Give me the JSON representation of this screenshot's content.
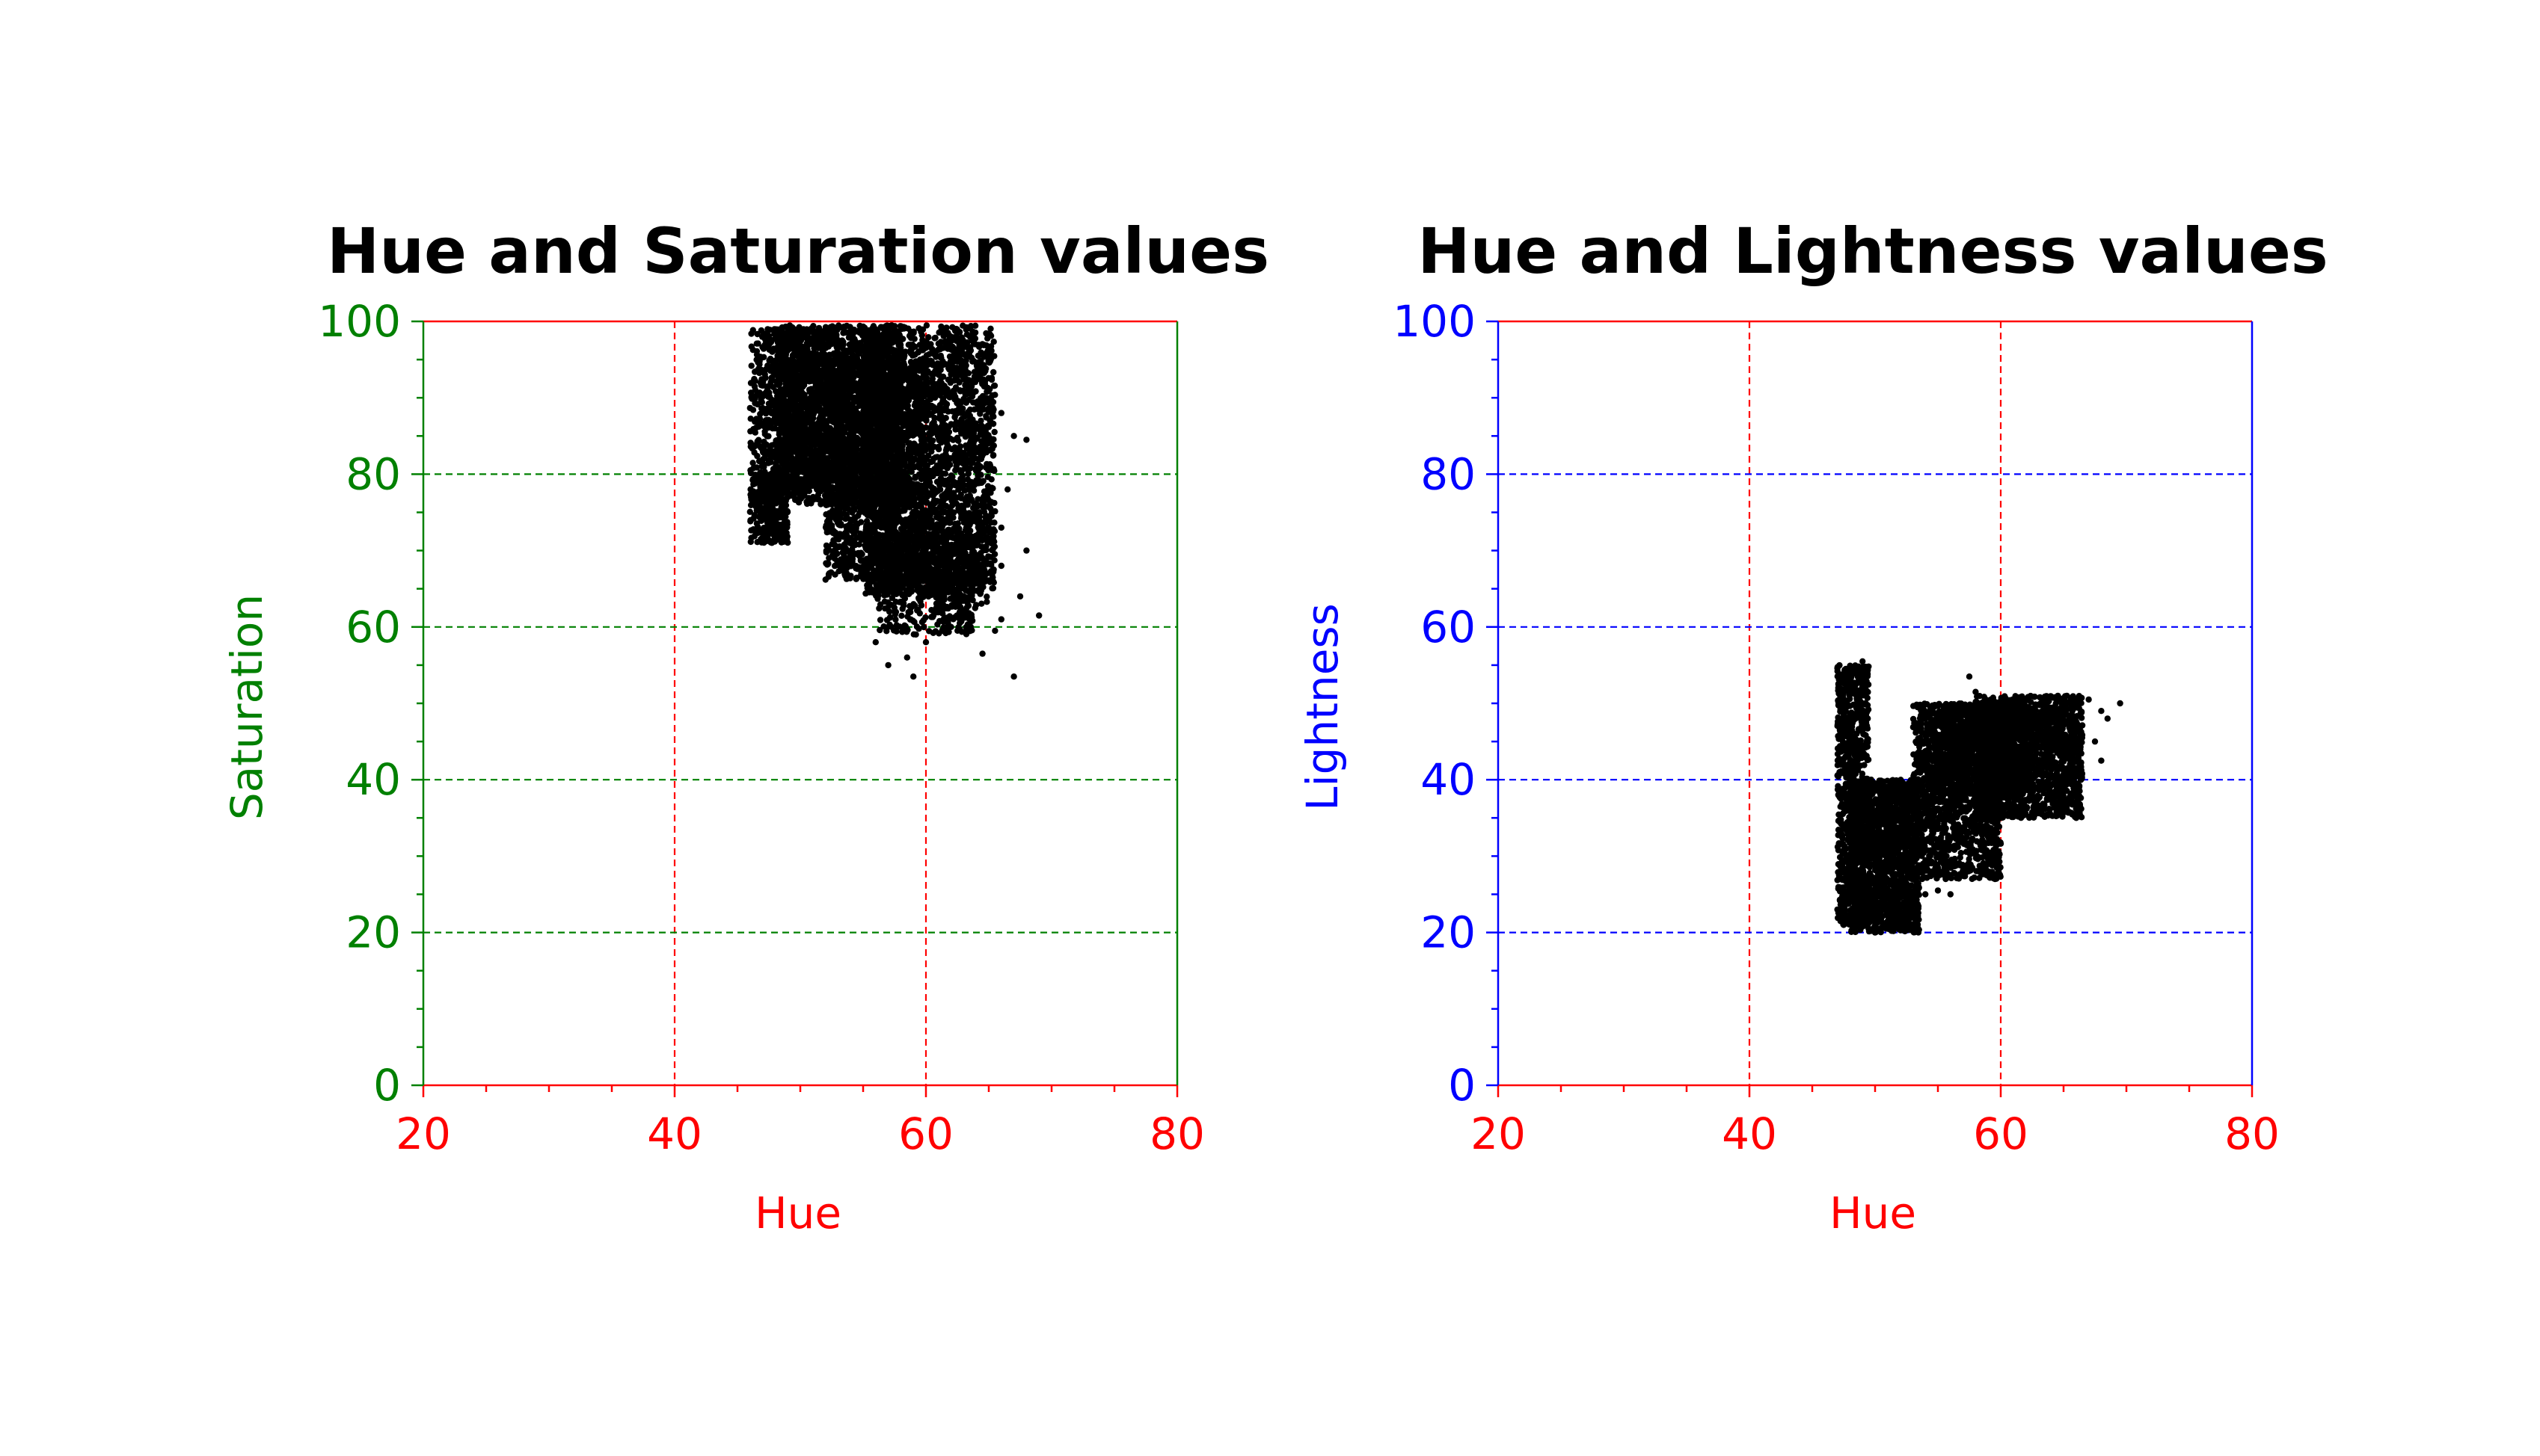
{
  "chart_data": [
    {
      "type": "scatter",
      "title": "Hue and Saturation values",
      "xlabel": "Hue",
      "ylabel": "Saturation",
      "xlim": [
        20,
        80
      ],
      "ylim": [
        0,
        100
      ],
      "xticks": [
        "20",
        "40",
        "60",
        "80"
      ],
      "yticks": [
        "0",
        "20",
        "40",
        "60",
        "80",
        "100"
      ],
      "grid": true,
      "colors": {
        "x_axis": "#ff0000",
        "y_axis": "#008000",
        "points": "#000000"
      },
      "series": [
        {
          "regions": [
            {
              "x": [
                46.0,
                49.0
              ],
              "y": [
                71.0,
                80.0
              ],
              "n": 300
            },
            {
              "x": [
                46.0,
                52.0
              ],
              "y": [
                78.0,
                99.0
              ],
              "n": 700
            },
            {
              "x": [
                48.0,
                58.0
              ],
              "y": [
                76.0,
                99.5
              ],
              "n": 2200
            },
            {
              "x": [
                52.0,
                60.0
              ],
              "y": [
                66.0,
                95.0
              ],
              "n": 1500
            },
            {
              "x": [
                55.0,
                65.5
              ],
              "y": [
                64.0,
                99.5
              ],
              "n": 2000
            },
            {
              "x": [
                56.0,
                64.0
              ],
              "y": [
                59.0,
                72.0
              ],
              "n": 500
            },
            {
              "x": [
                60.0,
                65.0
              ],
              "y": [
                62.0,
                98.0
              ],
              "n": 400
            }
          ],
          "points": [
            [
              57.0,
              55.0
            ],
            [
              59.0,
              53.5
            ],
            [
              58.5,
              56.0
            ],
            [
              67.0,
              53.5
            ],
            [
              69.0,
              61.5
            ],
            [
              68.0,
              70.0
            ],
            [
              66.0,
              68.0
            ],
            [
              67.5,
              64.0
            ],
            [
              66.0,
              61.0
            ],
            [
              66.5,
              78.0
            ],
            [
              67.0,
              85.0
            ],
            [
              66.0,
              88.0
            ],
            [
              68.0,
              84.5
            ],
            [
              60.0,
              58.0
            ],
            [
              62.0,
              60.0
            ],
            [
              66.0,
              73.0
            ],
            [
              64.5,
              56.5
            ],
            [
              65.5,
              59.5
            ],
            [
              56.0,
              58.0
            ],
            [
              63.0,
              61.5
            ]
          ]
        }
      ]
    },
    {
      "type": "scatter",
      "title": "Hue and Lightness values",
      "xlabel": "Hue",
      "ylabel": "Lightness",
      "xlim": [
        20,
        80
      ],
      "ylim": [
        0,
        100
      ],
      "xticks": [
        "20",
        "40",
        "60",
        "80"
      ],
      "yticks": [
        "0",
        "20",
        "40",
        "60",
        "80",
        "100"
      ],
      "grid": true,
      "colors": {
        "x_axis": "#ff0000",
        "y_axis": "#0000ff",
        "points": "#000000"
      },
      "series": [
        {
          "regions": [
            {
              "x": [
                47.0,
                49.5
              ],
              "y": [
                21.0,
                55.0
              ],
              "n": 900
            },
            {
              "x": [
                48.0,
                53.5
              ],
              "y": [
                20.0,
                40.0
              ],
              "n": 1600
            },
            {
              "x": [
                53.0,
                60.0
              ],
              "y": [
                27.0,
                50.0
              ],
              "n": 1400
            },
            {
              "x": [
                58.0,
                66.5
              ],
              "y": [
                35.0,
                51.0
              ],
              "n": 1600
            },
            {
              "x": [
                55.0,
                62.0
              ],
              "y": [
                38.0,
                50.0
              ],
              "n": 800
            }
          ],
          "points": [
            [
              49.0,
              55.5
            ],
            [
              48.5,
              54.0
            ],
            [
              57.5,
              53.5
            ],
            [
              55.0,
              25.5
            ],
            [
              56.0,
              25.0
            ],
            [
              69.5,
              50.0
            ],
            [
              68.0,
              49.0
            ],
            [
              68.5,
              48.0
            ],
            [
              54.0,
              25.0
            ],
            [
              67.0,
              50.5
            ],
            [
              47.0,
              23.0
            ],
            [
              47.5,
              21.0
            ],
            [
              50.0,
              20.0
            ],
            [
              51.0,
              20.5
            ],
            [
              58.0,
              51.5
            ],
            [
              68.0,
              42.5
            ],
            [
              67.5,
              45.0
            ],
            [
              52.0,
              22.0
            ]
          ]
        }
      ]
    }
  ]
}
